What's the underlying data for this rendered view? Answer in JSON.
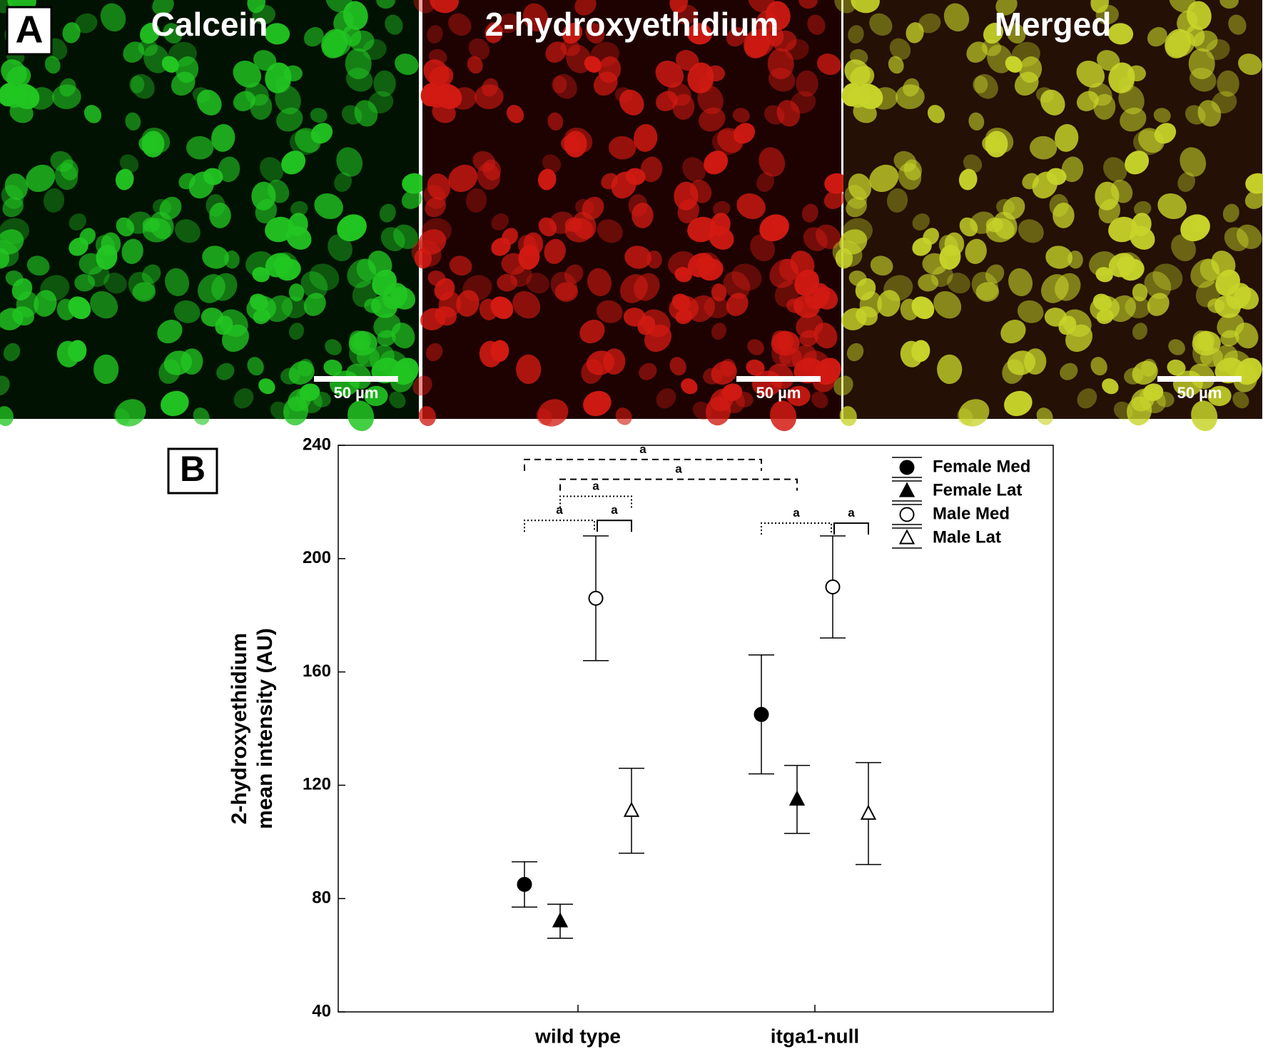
{
  "panel_a": {
    "label": "A",
    "images": [
      {
        "title": "Calcein",
        "scale_bar": "50 µm",
        "color": "#22c622"
      },
      {
        "title": "2-hydroxyethidium",
        "scale_bar": "50 µm",
        "color": "#d21a12"
      },
      {
        "title": "Merged",
        "scale_bar": "50 µm",
        "color": "#c8d42a"
      }
    ]
  },
  "chart_data": {
    "type": "scatter",
    "panel_label": "B",
    "y_label": [
      "2-hydroxyethidium",
      "mean intensity (AU)"
    ],
    "categories": [
      "wild type",
      "itga1-null"
    ],
    "ylim": [
      40,
      240
    ],
    "yticks": [
      40,
      80,
      120,
      160,
      200,
      240
    ],
    "series": [
      {
        "name": "Female Med",
        "color": "#000000",
        "marker": "circle",
        "filled": true,
        "values": [
          85,
          145
        ],
        "errors": [
          8,
          21
        ]
      },
      {
        "name": "Female Lat",
        "color": "#000000",
        "marker": "triangle",
        "filled": true,
        "values": [
          72,
          115
        ],
        "errors": [
          6,
          12
        ]
      },
      {
        "name": "Male Med",
        "color": "#000000",
        "marker": "circle",
        "filled": false,
        "values": [
          186,
          190
        ],
        "errors": [
          22,
          18
        ]
      },
      {
        "name": "Male Lat",
        "color": "#000000",
        "marker": "triangle",
        "filled": false,
        "values": [
          111,
          110
        ],
        "errors": [
          15,
          18
        ]
      }
    ],
    "significance": [
      "a",
      "a",
      "a",
      "a",
      "a",
      "a",
      "a"
    ],
    "legend": "upper right"
  }
}
